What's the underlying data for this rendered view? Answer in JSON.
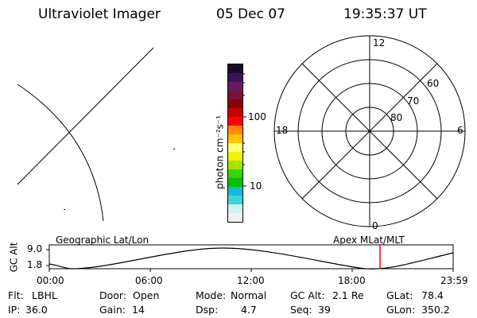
{
  "header": {
    "title": "Ultraviolet Imager",
    "date": "05 Dec 07",
    "time": "19:35:37 UT"
  },
  "colorbar": {
    "label": "photon cm⁻²s⁻¹",
    "ticks": [
      {
        "label": "100",
        "value": 100
      },
      {
        "label": "10",
        "value": 10
      }
    ],
    "colors": [
      "#f2f2f2",
      "#d8eef2",
      "#3fd3d3",
      "#17b8d8",
      "#00c000",
      "#38d400",
      "#a6e400",
      "#f3f300",
      "#ffff7a",
      "#ffc300",
      "#ff8a00",
      "#ff0000",
      "#cc0000",
      "#8b0000",
      "#7a1238",
      "#6a1a5c",
      "#3a1455",
      "#1a0a2a"
    ]
  },
  "polar_plot": {
    "mlt_labels": [
      {
        "label": "12"
      },
      {
        "label": "18"
      },
      {
        "label": "6"
      },
      {
        "label": "0"
      }
    ],
    "lat_labels": [
      {
        "label": "60"
      },
      {
        "label": "70"
      },
      {
        "label": "80"
      }
    ]
  },
  "timeline": {
    "left_title": "Geographic Lat/Lon",
    "right_title": "Apex  MLat/MLT",
    "axis_label": "GC Alt",
    "y_ticks": [
      "9.0",
      "1.8"
    ],
    "x_ticks": [
      "00:00",
      "06:00",
      "12:00",
      "18:00",
      "23:59"
    ],
    "marker_color": "#ff0000"
  },
  "info": {
    "flt_label": "Flt:",
    "flt_value": "LBHL",
    "door_label": "Door:",
    "door_value": "Open",
    "mode_label": "Mode:",
    "mode_value": "Normal",
    "gcalt_label": "GC Alt:",
    "gcalt_value": "2.1 Re",
    "glat_label": "GLat:",
    "glat_value": "78.4",
    "ip_label": "IP:",
    "ip_value": "36.0",
    "gain_label": "Gain:",
    "gain_value": "14",
    "dsp_label": "Dsp:",
    "dsp_value": "4.7",
    "seq_label": "Seq:",
    "seq_value": "39",
    "glon_label": "GLon:",
    "glon_value": "350.2"
  }
}
